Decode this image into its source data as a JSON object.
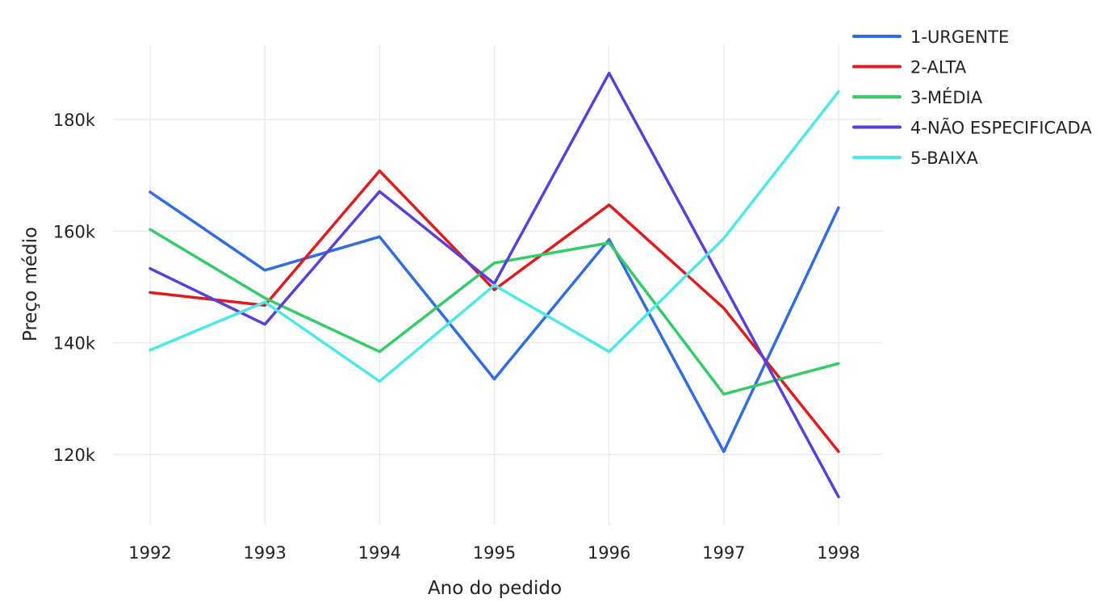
{
  "chart_data": {
    "type": "line",
    "title": "",
    "xlabel": "Ano do pedido",
    "ylabel": "Preço médio",
    "x": [
      1992,
      1993,
      1994,
      1995,
      1996,
      1997,
      1998
    ],
    "x_tick_labels": [
      "1992",
      "1993",
      "1994",
      "1995",
      "1996",
      "1997",
      "1998"
    ],
    "y_ticks": [
      120000,
      140000,
      160000,
      180000
    ],
    "y_tick_labels": [
      "120k",
      "140k",
      "160k",
      "180k"
    ],
    "ylim": [
      108000,
      194000
    ],
    "grid": true,
    "legend_position": "top-right",
    "series": [
      {
        "name": "1-URGENTE",
        "color": "#2f6de1",
        "values": [
          167000,
          153000,
          159000,
          133500,
          158500,
          120500,
          164200
        ]
      },
      {
        "name": "2-ALTA",
        "color": "#e31a1c",
        "values": [
          149000,
          146700,
          170800,
          149500,
          164700,
          146200,
          120500
        ]
      },
      {
        "name": "3-MÉDIA",
        "color": "#33cc66",
        "values": [
          160300,
          148000,
          138400,
          154300,
          157900,
          130800,
          136300
        ]
      },
      {
        "name": "4-NÃO ESPECIFICADA",
        "color": "#5b3fd9",
        "values": [
          153300,
          143300,
          167100,
          150600,
          188300,
          150400,
          112400
        ]
      },
      {
        "name": "5-BAIXA",
        "color": "#4de8e8",
        "values": [
          138700,
          147300,
          133100,
          150300,
          138400,
          158700,
          185000
        ]
      }
    ]
  }
}
